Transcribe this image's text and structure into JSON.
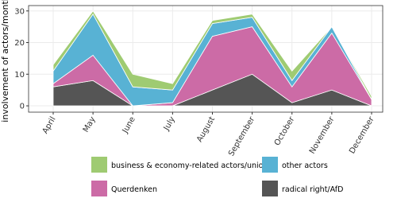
{
  "chart_data": {
    "type": "stacked-area",
    "y_label": "involvement of actors/month",
    "categories": [
      "April",
      "May",
      "June",
      "July",
      "August",
      "September",
      "October",
      "November",
      "December"
    ],
    "series": [
      {
        "name": "radical right/AfD",
        "color": "#555555",
        "values": [
          6,
          8,
          0,
          0,
          5,
          10,
          1,
          5,
          0
        ]
      },
      {
        "name": "Querdenken",
        "color": "#cc6ba6",
        "values": [
          1,
          8,
          0,
          1,
          17,
          15,
          5,
          18,
          2
        ]
      },
      {
        "name": "other actors",
        "color": "#58b2d4",
        "values": [
          4,
          13,
          6,
          4,
          4,
          3,
          2,
          2,
          0
        ]
      },
      {
        "name": "business & economy-related actors/unions",
        "color": "#9fcb72",
        "values": [
          2,
          1,
          4,
          2,
          1,
          1,
          3,
          0,
          1
        ]
      }
    ],
    "legend_order": [
      3,
      2,
      1,
      0
    ],
    "ylim": [
      -2,
      31.7
    ],
    "yticks": [
      0,
      10,
      20,
      30
    ],
    "grid": true
  }
}
